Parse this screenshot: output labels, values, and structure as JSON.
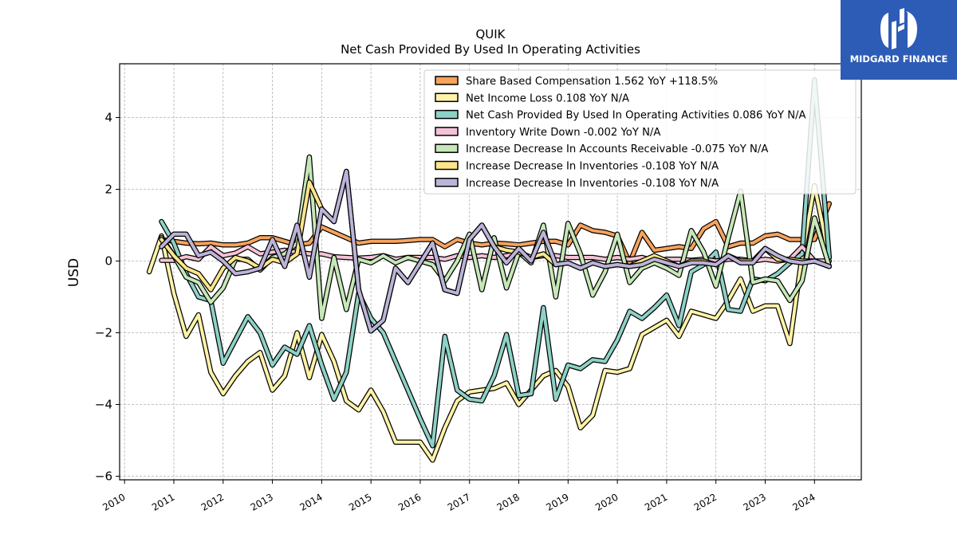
{
  "chart_data": {
    "type": "line",
    "title": "QUIK",
    "subtitle": "Net Cash Provided By Used In Operating Activities",
    "ylabel": "USD",
    "xlabel": "",
    "ylim": [
      -6.1,
      5.5
    ],
    "xlim": [
      2009.9,
      2024.95
    ],
    "yticks": [
      -6,
      -4,
      -2,
      0,
      2,
      4
    ],
    "xticks": [
      "2010",
      "2011",
      "2012",
      "2013",
      "2014",
      "2015",
      "2016",
      "2017",
      "2018",
      "2019",
      "2020",
      "2021",
      "2022",
      "2023",
      "2024"
    ],
    "grid": true,
    "legend_position": "top-right",
    "x": [
      2010.5,
      2010.75,
      2011.0,
      2011.25,
      2011.5,
      2011.75,
      2012.0,
      2012.25,
      2012.5,
      2012.75,
      2013.0,
      2013.25,
      2013.5,
      2013.75,
      2014.0,
      2014.25,
      2014.5,
      2014.75,
      2015.0,
      2015.25,
      2015.5,
      2015.75,
      2016.0,
      2016.25,
      2016.5,
      2016.75,
      2017.0,
      2017.25,
      2017.5,
      2017.75,
      2018.0,
      2018.25,
      2018.5,
      2018.75,
      2019.0,
      2019.25,
      2019.5,
      2019.75,
      2020.0,
      2020.25,
      2020.5,
      2020.75,
      2021.0,
      2021.25,
      2021.5,
      2021.75,
      2022.0,
      2022.25,
      2022.5,
      2022.75,
      2023.0,
      2023.25,
      2023.5,
      2023.75,
      2024.0,
      2024.3
    ],
    "series": [
      {
        "name": "Share Based Compensation  1.562 YoY +118.5%",
        "color": "#f7a35c",
        "values": [
          null,
          0.6,
          0.55,
          0.5,
          0.48,
          0.5,
          0.45,
          0.45,
          0.5,
          0.65,
          0.65,
          0.55,
          0.45,
          0.5,
          0.95,
          0.8,
          0.65,
          0.5,
          0.55,
          0.55,
          0.55,
          0.57,
          0.6,
          0.6,
          0.4,
          0.6,
          0.5,
          0.45,
          0.5,
          0.48,
          0.45,
          0.5,
          0.55,
          0.55,
          0.45,
          1.0,
          0.85,
          0.8,
          0.7,
          -0.05,
          0.8,
          0.3,
          0.35,
          0.4,
          0.35,
          0.9,
          1.1,
          0.4,
          0.5,
          0.5,
          0.7,
          0.75,
          0.6,
          0.6,
          0.6,
          1.6
        ]
      },
      {
        "name": "Net Income Loss  0.108 YoY N/A",
        "color": "#fff3a8",
        "values": [
          -0.3,
          0.7,
          -0.9,
          -2.1,
          -1.5,
          -3.1,
          -3.7,
          -3.2,
          -2.8,
          -2.55,
          -3.6,
          -3.2,
          -2.0,
          -3.25,
          -2.05,
          -2.8,
          -3.9,
          -4.15,
          -3.6,
          -4.2,
          -5.05,
          -5.05,
          -5.05,
          -5.55,
          -4.65,
          -3.9,
          -3.65,
          -3.6,
          -3.55,
          -3.4,
          -4.0,
          -3.6,
          -3.2,
          -3.05,
          -3.5,
          -4.65,
          -4.3,
          -3.05,
          -3.1,
          -3.0,
          -2.05,
          -1.85,
          -1.65,
          -2.1,
          -1.4,
          -1.5,
          -1.6,
          -1.1,
          -0.5,
          -1.4,
          -1.25,
          -1.25,
          -2.3,
          0.15,
          2.1,
          0.1
        ]
      },
      {
        "name": "Net Cash Provided By Used In Operating Activities  0.086 YoY N/A",
        "color": "#8ed1c6",
        "values": [
          null,
          1.1,
          0.5,
          -0.35,
          -1.0,
          -1.1,
          -2.85,
          -2.2,
          -1.55,
          -2.0,
          -2.9,
          -2.4,
          -2.6,
          -1.8,
          -2.9,
          -3.85,
          -3.1,
          -0.9,
          -1.6,
          -2.0,
          -2.8,
          -3.6,
          -4.4,
          -5.15,
          -2.1,
          -3.6,
          -3.85,
          -3.9,
          -3.2,
          -2.05,
          -3.75,
          -3.7,
          -1.3,
          -3.85,
          -2.9,
          -3.0,
          -2.75,
          -2.8,
          -2.2,
          -1.4,
          -1.6,
          -1.3,
          -0.95,
          -1.8,
          -0.3,
          -0.1,
          0.25,
          -1.35,
          -1.4,
          -0.5,
          -0.55,
          -0.35,
          -0.05,
          0.2,
          5.05,
          0.1
        ]
      },
      {
        "name": "Inventory Write Down  -0.002 YoY N/A",
        "color": "#f4c2d7",
        "values": [
          null,
          0.02,
          0.02,
          0.12,
          0.05,
          0.4,
          0.15,
          0.22,
          0.4,
          0.2,
          0.25,
          0.3,
          0.25,
          0.2,
          0.2,
          0.12,
          0.1,
          0.08,
          0.1,
          0.15,
          0.05,
          0.1,
          0.1,
          0.1,
          0.05,
          0.15,
          0.1,
          0.15,
          0.1,
          0.15,
          0.2,
          0.1,
          0.15,
          0.15,
          0.1,
          0.1,
          0.1,
          0.05,
          0.1,
          0.05,
          0.1,
          0.0,
          0.05,
          0.05,
          0.02,
          0.05,
          0.0,
          0.05,
          0.05,
          0.0,
          0.05,
          0.0,
          0.05,
          0.4,
          0.0,
          0.0
        ]
      },
      {
        "name": "Increase Decrease In Accounts Receivable  -0.075 YoY N/A",
        "color": "#c6e8b8",
        "values": [
          null,
          0.65,
          0.15,
          -0.45,
          -0.6,
          -1.15,
          -0.75,
          0.05,
          0.05,
          -0.25,
          0.1,
          0.2,
          0.5,
          2.9,
          -1.6,
          0.1,
          -1.35,
          0.05,
          -0.05,
          0.15,
          -0.05,
          0.1,
          0.0,
          -0.1,
          -0.55,
          0.0,
          0.75,
          -0.8,
          0.65,
          -0.75,
          0.25,
          -0.05,
          1.0,
          -1.0,
          1.05,
          0.2,
          -0.95,
          -0.3,
          0.75,
          -0.6,
          -0.2,
          -0.05,
          -0.2,
          -0.4,
          0.85,
          0.25,
          -0.7,
          0.65,
          1.95,
          -0.6,
          -0.5,
          -0.55,
          -1.1,
          -0.55,
          1.2,
          -0.15
        ]
      },
      {
        "name": "Increase Decrease In Inventories  -0.108 YoY N/A",
        "color": "#fde68a",
        "values": [
          null,
          0.6,
          0.15,
          -0.2,
          -0.35,
          -0.8,
          -0.2,
          0.1,
          0.0,
          -0.2,
          0.05,
          -0.05,
          0.2,
          2.2,
          1.45,
          1.1,
          2.5,
          -0.8,
          -1.95,
          -1.65,
          -0.2,
          -0.6,
          -0.05,
          0.5,
          -0.8,
          -0.9,
          0.6,
          1.0,
          0.4,
          0.3,
          0.25,
          0.1,
          0.2,
          -0.1,
          -0.05,
          -0.2,
          -0.05,
          -0.15,
          -0.1,
          -0.15,
          0.0,
          0.15,
          0.0,
          -0.15,
          0.0,
          0.0,
          -0.1,
          0.15,
          0.0,
          0.0,
          0.35,
          0.05,
          0.05,
          0.0,
          0.0,
          -0.15
        ]
      },
      {
        "name": "Increase Decrease In Inventories  -0.108 YoY N/A",
        "color": "#bcb3d8",
        "values": [
          null,
          0.4,
          0.75,
          0.75,
          0.15,
          0.25,
          0.0,
          -0.35,
          -0.3,
          -0.2,
          0.6,
          -0.15,
          1.0,
          -0.45,
          1.45,
          1.1,
          2.5,
          -0.8,
          -1.95,
          -1.65,
          -0.2,
          -0.6,
          -0.05,
          0.5,
          -0.8,
          -0.9,
          0.6,
          1.0,
          0.4,
          -0.05,
          0.35,
          0.0,
          0.8,
          -0.1,
          -0.05,
          -0.2,
          -0.05,
          -0.15,
          -0.1,
          -0.15,
          -0.1,
          0.05,
          -0.05,
          -0.15,
          -0.05,
          -0.05,
          -0.1,
          0.15,
          -0.05,
          -0.05,
          0.35,
          0.15,
          0.0,
          -0.05,
          0.0,
          -0.15
        ]
      }
    ]
  },
  "logo": {
    "text": "MIDGARD FINANCE",
    "color": "#2d5cb6"
  }
}
